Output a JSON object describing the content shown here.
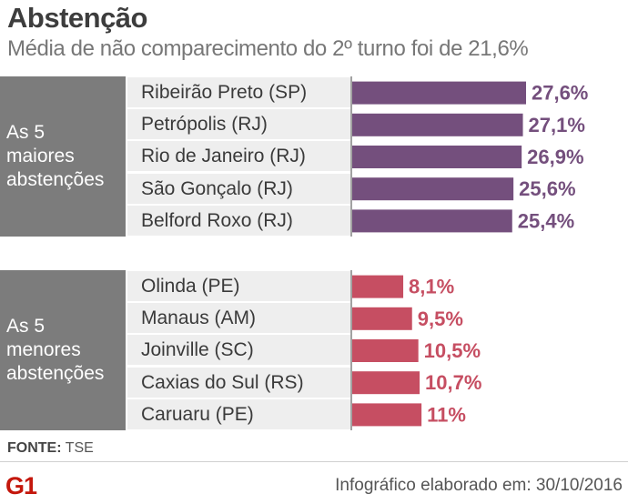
{
  "header": {
    "title": "Abstenção",
    "subtitle": "Média de não comparecimento do 2º turno foi de 21,6%"
  },
  "groups": {
    "top": {
      "label_lines": [
        "As 5",
        "maiores",
        "abstenções"
      ]
    },
    "bottom": {
      "label_lines": [
        "As 5",
        "menores",
        "abstenções"
      ]
    }
  },
  "chart_data": {
    "type": "bar",
    "orientation": "horizontal",
    "title": "Abstenção",
    "subtitle": "Média de não comparecimento do 2º turno foi de 21,6%",
    "unit": "%",
    "series": [
      {
        "name": "As 5 maiores abstenções",
        "color": "#744f7d",
        "categories": [
          "Ribeirão Preto (SP)",
          "Petrópolis (RJ)",
          "Rio de Janeiro (RJ)",
          "São Gonçalo (RJ)",
          "Belford Roxo (RJ)"
        ],
        "values": [
          27.6,
          27.1,
          26.9,
          25.6,
          25.4
        ],
        "value_labels": [
          "27,6%",
          "27,1%",
          "26,9%",
          "25,6%",
          "25,4%"
        ]
      },
      {
        "name": "As 5 menores abstenções",
        "color": "#c64e62",
        "categories": [
          "Olinda (PE)",
          "Manaus (AM)",
          "Joinville (SC)",
          "Caxias do Sul (RS)",
          "Caruaru (PE)"
        ],
        "values": [
          8.1,
          9.5,
          10.5,
          10.7,
          11
        ],
        "value_labels": [
          "8,1%",
          "9,5%",
          "10,5%",
          "10,7%",
          "11%"
        ]
      }
    ]
  },
  "footer": {
    "source_label": "FONTE:",
    "source_value": "TSE",
    "logo": "G1",
    "credit": "Infográfico elaborado em: 30/10/2016"
  }
}
